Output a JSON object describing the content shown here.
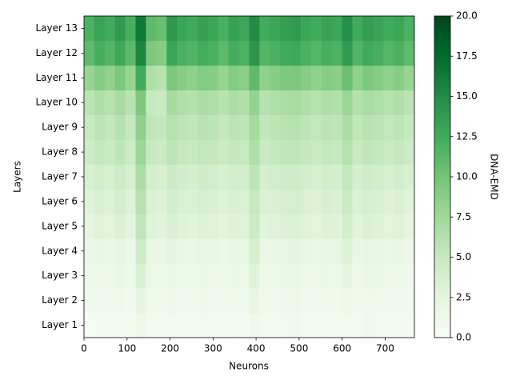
{
  "chart_data": {
    "type": "heatmap",
    "xlabel": "Neurons",
    "ylabel": "Layers",
    "colorbar_label": "DNA-EMD",
    "categories": [
      "Layer 1",
      "Layer 2",
      "Layer 3",
      "Layer 4",
      "Layer 5",
      "Layer 6",
      "Layer 7",
      "Layer 8",
      "Layer 9",
      "Layer 10",
      "Layer 11",
      "Layer 12",
      "Layer 13"
    ],
    "bins": [
      0,
      24,
      48,
      72,
      96,
      120,
      144,
      168,
      192,
      216,
      240,
      264,
      288,
      312,
      336,
      360,
      384,
      408,
      432,
      456,
      480,
      504,
      528,
      552,
      576,
      600,
      624,
      648,
      672,
      696,
      720,
      744,
      768
    ],
    "xlim": [
      0,
      768
    ],
    "xticks": [
      0,
      100,
      200,
      300,
      400,
      500,
      600,
      700
    ],
    "clim": [
      0,
      20
    ],
    "cticks": [
      {
        "value": 0,
        "label": "0.0"
      },
      2.5,
      {
        "value": 5,
        "label": "5.0"
      },
      7.5,
      {
        "value": 10,
        "label": "10.0"
      },
      12.5,
      {
        "value": 15,
        "label": "15.0"
      },
      17.5,
      {
        "value": 20,
        "label": "20.0"
      }
    ],
    "colormap": [
      "#f7fcf5",
      "#e5f5e0",
      "#c7e9c0",
      "#a1d99b",
      "#74c476",
      "#41ab5d",
      "#238b45",
      "#006d2c",
      "#00441b"
    ],
    "values": [
      [
        0.4,
        0.6,
        0.5,
        0.7,
        0.5,
        1.5,
        0.6,
        0.5,
        0.8,
        0.6,
        0.5,
        0.7,
        0.6,
        0.5,
        0.7,
        0.6,
        1.2,
        0.5,
        0.6,
        0.8,
        1.0,
        0.6,
        0.5,
        0.7,
        0.6,
        0.8,
        0.5,
        1.0,
        0.7,
        0.5,
        0.6,
        0.4
      ],
      [
        0.8,
        1.0,
        0.9,
        1.2,
        0.8,
        2.5,
        1.1,
        0.9,
        1.3,
        1.0,
        0.9,
        1.2,
        1.0,
        0.9,
        1.1,
        1.0,
        2.2,
        0.9,
        1.0,
        1.2,
        1.3,
        1.0,
        0.9,
        1.1,
        1.0,
        1.5,
        0.9,
        1.2,
        1.1,
        0.9,
        1.0,
        0.8
      ],
      [
        1.2,
        1.5,
        1.4,
        1.8,
        1.3,
        3.5,
        1.6,
        1.4,
        1.9,
        1.5,
        1.4,
        1.7,
        1.5,
        1.3,
        1.6,
        1.5,
        3.0,
        1.4,
        1.5,
        1.8,
        1.9,
        1.5,
        1.4,
        1.6,
        1.5,
        2.5,
        1.4,
        1.8,
        1.6,
        1.4,
        1.5,
        1.2
      ],
      [
        1.6,
        2.0,
        1.8,
        2.3,
        1.7,
        4.5,
        2.0,
        1.8,
        2.6,
        2.0,
        1.8,
        2.2,
        2.0,
        1.7,
        2.1,
        2.0,
        3.8,
        1.8,
        2.0,
        2.3,
        2.4,
        2.0,
        1.8,
        2.1,
        2.0,
        3.2,
        1.8,
        2.3,
        2.1,
        1.8,
        2.0,
        1.6
      ],
      [
        2.5,
        3.0,
        2.8,
        3.3,
        2.6,
        5.5,
        3.0,
        2.7,
        3.5,
        3.0,
        2.8,
        3.2,
        3.0,
        2.6,
        3.1,
        3.0,
        4.5,
        2.8,
        3.0,
        3.3,
        3.4,
        3.0,
        2.8,
        3.1,
        3.0,
        4.0,
        2.8,
        3.3,
        3.1,
        2.8,
        3.0,
        2.5
      ],
      [
        3.0,
        3.6,
        3.2,
        3.9,
        3.1,
        6.2,
        3.4,
        3.2,
        4.0,
        3.5,
        3.3,
        3.7,
        3.5,
        3.1,
        3.6,
        3.4,
        5.0,
        3.3,
        3.5,
        3.8,
        3.9,
        3.5,
        3.2,
        3.6,
        3.4,
        4.6,
        3.3,
        3.8,
        3.6,
        3.2,
        3.5,
        3.0
      ],
      [
        3.6,
        4.2,
        3.8,
        4.5,
        3.7,
        6.8,
        4.0,
        3.8,
        4.6,
        4.1,
        3.9,
        4.3,
        4.1,
        3.7,
        4.2,
        4.0,
        5.6,
        3.9,
        4.1,
        4.4,
        4.5,
        4.1,
        3.8,
        4.2,
        4.0,
        5.2,
        3.9,
        4.4,
        4.2,
        3.8,
        4.1,
        3.6
      ],
      [
        4.5,
        5.2,
        4.8,
        5.5,
        4.6,
        7.8,
        5.0,
        4.7,
        5.6,
        5.1,
        4.9,
        5.3,
        5.1,
        4.6,
        5.2,
        5.0,
        6.5,
        4.8,
        5.1,
        5.4,
        5.5,
        5.1,
        4.8,
        5.2,
        5.0,
        6.2,
        4.9,
        5.4,
        5.2,
        4.8,
        5.1,
        4.5
      ],
      [
        5.0,
        5.8,
        5.3,
        6.1,
        5.1,
        8.5,
        5.5,
        5.2,
        6.2,
        5.7,
        5.4,
        5.9,
        5.7,
        5.1,
        5.8,
        5.6,
        7.2,
        5.3,
        5.7,
        6.0,
        6.1,
        5.7,
        5.3,
        5.8,
        5.6,
        6.8,
        5.4,
        6.0,
        5.8,
        5.3,
        5.7,
        5.0
      ],
      [
        5.8,
        6.6,
        6.1,
        7.0,
        5.9,
        9.5,
        5.0,
        4.8,
        7.1,
        6.5,
        6.2,
        6.8,
        6.5,
        5.9,
        6.7,
        6.4,
        8.2,
        6.1,
        6.5,
        6.9,
        7.0,
        6.5,
        6.1,
        6.6,
        6.4,
        7.8,
        6.2,
        6.9,
        6.6,
        6.1,
        6.5,
        5.8
      ],
      [
        8.0,
        9.0,
        8.4,
        9.5,
        8.1,
        12.5,
        6.5,
        6.0,
        9.6,
        8.9,
        8.5,
        9.2,
        8.9,
        8.1,
        9.1,
        8.8,
        11.0,
        8.4,
        8.9,
        9.4,
        9.5,
        8.9,
        8.4,
        9.0,
        8.8,
        10.5,
        8.5,
        9.4,
        9.0,
        8.4,
        8.9,
        8.0
      ],
      [
        11.0,
        12.2,
        11.5,
        12.8,
        11.2,
        15.5,
        9.5,
        9.0,
        13.0,
        12.0,
        11.6,
        12.4,
        12.0,
        11.1,
        12.3,
        11.9,
        14.2,
        11.5,
        12.0,
        12.6,
        12.8,
        12.0,
        11.5,
        12.2,
        11.9,
        13.8,
        11.6,
        12.6,
        12.2,
        11.5,
        12.0,
        11.0
      ],
      [
        12.0,
        13.2,
        12.5,
        13.8,
        12.2,
        16.5,
        11.0,
        10.5,
        14.0,
        13.0,
        12.6,
        13.4,
        13.0,
        12.1,
        13.3,
        12.9,
        15.0,
        12.5,
        13.0,
        13.6,
        13.8,
        13.0,
        12.5,
        13.2,
        12.9,
        14.8,
        12.6,
        13.6,
        13.2,
        12.5,
        13.0,
        12.0
      ]
    ]
  }
}
